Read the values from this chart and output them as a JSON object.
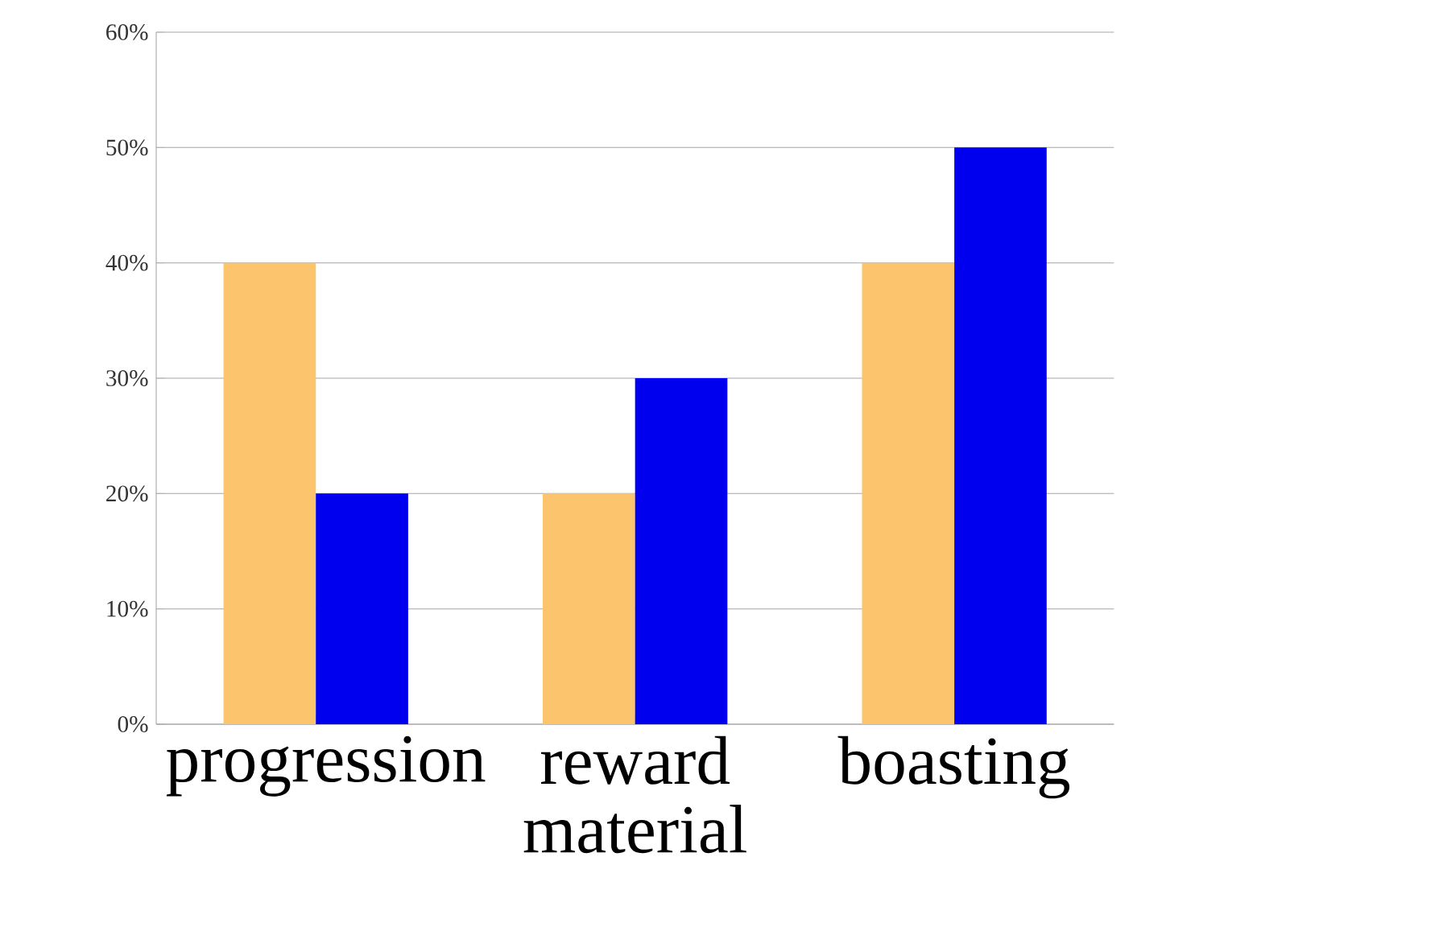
{
  "chart_data": {
    "type": "bar",
    "categories": [
      "progression",
      "reward material",
      "boasting"
    ],
    "series": [
      {
        "color": "#fcc46c",
        "values": [
          40,
          20,
          40
        ]
      },
      {
        "color": "#0000ee",
        "values": [
          20,
          30,
          50
        ]
      }
    ],
    "ylim": [
      0,
      60
    ],
    "yticks": [
      {
        "value": 0,
        "label": "0%"
      },
      {
        "value": 10,
        "label": "10%"
      },
      {
        "value": 20,
        "label": "20%"
      },
      {
        "value": 30,
        "label": "30%"
      },
      {
        "value": 40,
        "label": "40%"
      },
      {
        "value": 50,
        "label": "50%"
      },
      {
        "value": 60,
        "label": "60%"
      }
    ],
    "grid": "y"
  }
}
